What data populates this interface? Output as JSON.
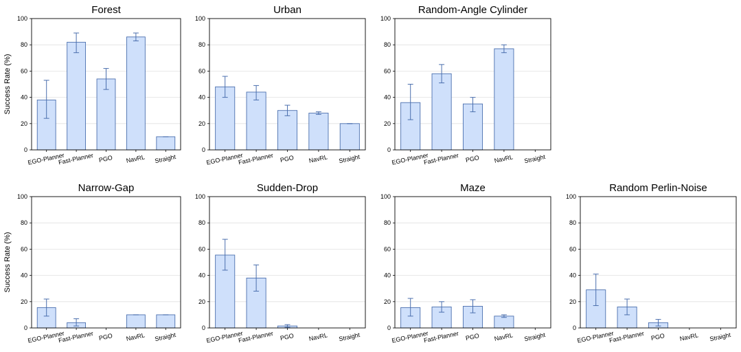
{
  "style": {
    "bar_fill": "#cfe0fb",
    "bar_stroke": "#4b6fae",
    "error_color": "#4b6fae",
    "grid_color": "#e0e0e0",
    "axis_color": "#000000"
  },
  "chart_data": [
    {
      "type": "bar",
      "title": "Forest",
      "ylabel": "Success Rate (%)",
      "ylim": [
        0,
        100
      ],
      "yticks": [
        0,
        20,
        40,
        60,
        80,
        100
      ],
      "grid": true,
      "categories": [
        "EGO-Planner",
        "Fast-Planner",
        "PGO",
        "NavRL",
        "Straight"
      ],
      "values": [
        38,
        82,
        54,
        86,
        10
      ],
      "err_low": [
        24,
        74,
        46,
        83,
        10
      ],
      "err_high": [
        53,
        89,
        62,
        89,
        10
      ]
    },
    {
      "type": "bar",
      "title": "Urban",
      "ylabel": "",
      "ylim": [
        0,
        100
      ],
      "yticks": [
        0,
        20,
        40,
        60,
        80,
        100
      ],
      "grid": true,
      "categories": [
        "EGO-Planner",
        "Fast-Planner",
        "PGO",
        "NavRL",
        "Straight"
      ],
      "values": [
        48,
        44,
        30,
        28,
        20
      ],
      "err_low": [
        40,
        38,
        26,
        27,
        20
      ],
      "err_high": [
        56,
        49,
        34,
        29,
        20
      ]
    },
    {
      "type": "bar",
      "title": "Random-Angle Cylinder",
      "ylabel": "",
      "ylim": [
        0,
        100
      ],
      "yticks": [
        0,
        20,
        40,
        60,
        80,
        100
      ],
      "grid": true,
      "categories": [
        "EGO-Planner",
        "Fast-Planner",
        "PGO",
        "NavRL",
        "Straight"
      ],
      "values": [
        36,
        58,
        35,
        77,
        0
      ],
      "err_low": [
        23,
        51,
        29,
        74,
        0
      ],
      "err_high": [
        50,
        65,
        40,
        80,
        0
      ]
    },
    {
      "type": "bar",
      "title": "Narrow-Gap",
      "ylabel": "Success Rate (%)",
      "ylim": [
        0,
        100
      ],
      "yticks": [
        0,
        20,
        40,
        60,
        80,
        100
      ],
      "grid": true,
      "categories": [
        "EGO-Planner",
        "Fast-Planner",
        "PGO",
        "NavRL",
        "Straight"
      ],
      "values": [
        15.5,
        4,
        0,
        10,
        10
      ],
      "err_low": [
        9,
        1.5,
        0,
        10,
        10
      ],
      "err_high": [
        22,
        7,
        0,
        10,
        10
      ]
    },
    {
      "type": "bar",
      "title": "Sudden-Drop",
      "ylabel": "",
      "ylim": [
        0,
        100
      ],
      "yticks": [
        0,
        20,
        40,
        60,
        80,
        100
      ],
      "grid": true,
      "categories": [
        "EGO-Planner",
        "Fast-Planner",
        "PGO",
        "NavRL",
        "Straight"
      ],
      "values": [
        55.5,
        38,
        1.5,
        0,
        0
      ],
      "err_low": [
        44,
        28,
        0.5,
        0,
        0
      ],
      "err_high": [
        67.5,
        48,
        2.5,
        0,
        0
      ]
    },
    {
      "type": "bar",
      "title": "Maze",
      "ylabel": "",
      "ylim": [
        0,
        100
      ],
      "yticks": [
        0,
        20,
        40,
        60,
        80,
        100
      ],
      "grid": true,
      "categories": [
        "EGO-Planner",
        "Fast-Planner",
        "PGO",
        "NavRL",
        "Straight"
      ],
      "values": [
        15.5,
        16,
        16.5,
        9,
        0
      ],
      "err_low": [
        9,
        12,
        11.5,
        8,
        0
      ],
      "err_high": [
        22.5,
        20,
        21.5,
        10,
        0
      ]
    },
    {
      "type": "bar",
      "title": "Random Perlin-Noise",
      "ylabel": "",
      "ylim": [
        0,
        100
      ],
      "yticks": [
        0,
        20,
        40,
        60,
        80,
        100
      ],
      "grid": true,
      "categories": [
        "EGO-Planner",
        "Fast-Planner",
        "PGO",
        "NavRL",
        "Straight"
      ],
      "values": [
        29,
        16,
        4,
        0,
        0
      ],
      "err_low": [
        17,
        10,
        1.5,
        0,
        0
      ],
      "err_high": [
        41,
        22,
        6.5,
        0,
        0
      ]
    }
  ]
}
